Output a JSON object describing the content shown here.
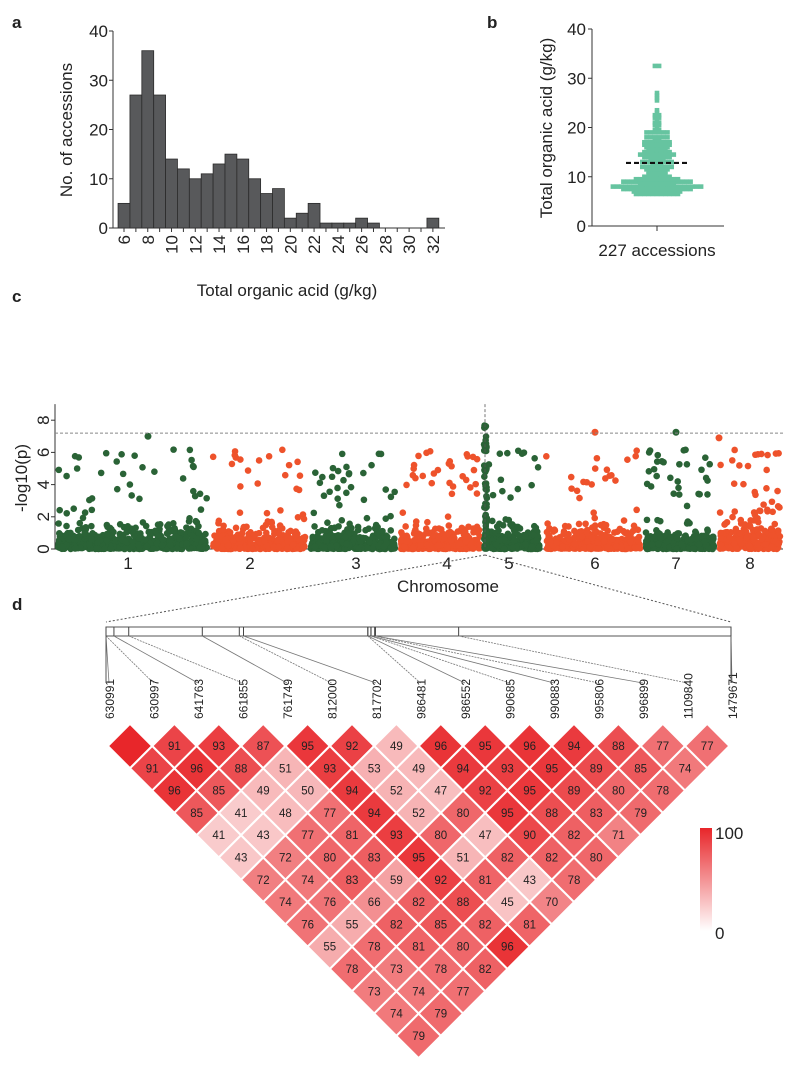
{
  "panels": {
    "a": "a",
    "b": "b",
    "c": "c",
    "d": "d"
  },
  "chart_data": [
    {
      "panel": "a",
      "type": "bar",
      "xlabel": "Total organic acid (g/kg)",
      "ylabel": "No. of accessions",
      "ylim": [
        0,
        40
      ],
      "yticks": [
        "0",
        "10",
        "20",
        "30",
        "40"
      ],
      "xticks": [
        "6",
        "8",
        "10",
        "12",
        "14",
        "16",
        "18",
        "20",
        "22",
        "24",
        "26",
        "28",
        "30",
        "32"
      ],
      "categories": [
        6,
        7,
        8,
        9,
        10,
        11,
        12,
        13,
        14,
        15,
        16,
        17,
        18,
        19,
        20,
        21,
        22,
        23,
        24,
        25,
        26,
        27,
        28,
        29,
        30,
        31,
        32
      ],
      "values": [
        5,
        27,
        36,
        27,
        14,
        12,
        10,
        11,
        13,
        15,
        14,
        10,
        7,
        8,
        2,
        3,
        5,
        1,
        1,
        1,
        2,
        1,
        0,
        0,
        0,
        0,
        2
      ],
      "bar_color": "#58595b"
    },
    {
      "panel": "b",
      "type": "scatter",
      "ylabel": "Total organic acid (g/kg)",
      "xlabel": "227 accessions",
      "ylim": [
        0,
        40
      ],
      "yticks": [
        "0",
        "10",
        "20",
        "30",
        "40"
      ],
      "n": 227,
      "mean": 12.8,
      "range": [
        6.3,
        32.5
      ],
      "point_color": "#66c4a0"
    },
    {
      "panel": "c",
      "type": "scatter",
      "xlabel": "Chromosome",
      "ylabel": "-log10(p)",
      "ylim": [
        0,
        9
      ],
      "yticks": [
        "0",
        "2",
        "4",
        "6",
        "8"
      ],
      "chromosomes": [
        "1",
        "2",
        "3",
        "4",
        "5",
        "6",
        "7",
        "8"
      ],
      "threshold": 7.2,
      "peak": {
        "chromosome": "4",
        "value": 8.2
      },
      "colors": [
        "#2a6336",
        "#ee522b"
      ]
    },
    {
      "panel": "d",
      "type": "heatmap",
      "snps": [
        "630991",
        "630997",
        "641763",
        "661855",
        "761749",
        "812000",
        "817702",
        "986481",
        "986552",
        "990685",
        "990883",
        "995806",
        "996899",
        "1109840",
        "1479671"
      ],
      "ld_rows": [
        [
          100,
          91,
          93,
          87,
          95,
          92,
          49,
          96,
          95,
          96,
          94,
          88,
          77,
          77
        ],
        [
          91,
          96,
          88,
          51,
          93,
          53,
          49,
          94,
          93,
          95,
          89,
          85,
          74
        ],
        [
          96,
          85,
          49,
          50,
          94,
          52,
          47,
          92,
          95,
          89,
          80,
          78
        ],
        [
          85,
          41,
          48,
          77,
          94,
          52,
          80,
          95,
          88,
          83,
          79
        ],
        [
          41,
          43,
          77,
          81,
          93,
          80,
          47,
          90,
          82,
          71
        ],
        [
          43,
          72,
          80,
          83,
          95,
          51,
          82,
          82,
          80
        ],
        [
          72,
          74,
          83,
          59,
          92,
          81,
          43,
          78
        ],
        [
          74,
          76,
          66,
          82,
          88,
          45,
          70
        ],
        [
          76,
          55,
          82,
          85,
          82,
          81
        ],
        [
          55,
          78,
          81,
          80,
          96
        ],
        [
          78,
          73,
          78,
          82
        ],
        [
          73,
          74,
          77
        ],
        [
          74,
          79
        ],
        [
          79
        ]
      ],
      "first_cell_labelled": false,
      "scale": {
        "max": "100",
        "min": "0",
        "max_color": "#e8262a",
        "min_color": "#ffffff"
      }
    }
  ]
}
